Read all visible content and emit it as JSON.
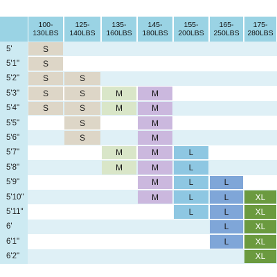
{
  "weights": [
    "100-\n130LBS",
    "125-\n140LBS",
    "135-\n160LBS",
    "145-\n180LBS",
    "155-\n200LBS",
    "165-\n250LBS",
    "175-\n280LBS"
  ],
  "heights": [
    "5'",
    "5'1\"",
    "5'2\"",
    "5'3\"",
    "5'4\"",
    "5'5\"",
    "5'6\"",
    "5'7\"",
    "5'8\"",
    "5'9\"",
    "5'10\"",
    "5'11\"",
    "6'",
    "6'1\"",
    "6'2\""
  ],
  "grid": [
    [
      "S",
      "",
      "",
      "",
      "",
      "",
      ""
    ],
    [
      "S",
      "",
      "",
      "",
      "",
      "",
      ""
    ],
    [
      "S",
      "S",
      "",
      "",
      "",
      "",
      ""
    ],
    [
      "S",
      "S",
      "M",
      "M",
      "",
      "",
      ""
    ],
    [
      "S",
      "S",
      "M",
      "M",
      "",
      "",
      ""
    ],
    [
      "",
      "S",
      "",
      "M",
      "",
      "",
      ""
    ],
    [
      "",
      "S",
      "",
      "M",
      "",
      "",
      ""
    ],
    [
      "",
      "",
      "M",
      "M",
      "L",
      "",
      ""
    ],
    [
      "",
      "",
      "M",
      "M",
      "L",
      "",
      ""
    ],
    [
      "",
      "",
      "",
      "M",
      "L",
      "L",
      ""
    ],
    [
      "",
      "",
      "",
      "M",
      "L",
      "L",
      "XL"
    ],
    [
      "",
      "",
      "",
      "",
      "L",
      "L",
      "XL"
    ],
    [
      "",
      "",
      "",
      "",
      "",
      "L",
      "XL"
    ],
    [
      "",
      "",
      "",
      "",
      "",
      "L",
      "XL"
    ],
    [
      "",
      "",
      "",
      "",
      "",
      "",
      "XL"
    ]
  ],
  "colors": {
    "header": "#9ad3e4",
    "row_blue": "#dff0f6",
    "row_white": "#ffffff",
    "S": "#ddd6c7",
    "M": "#d9e6c8",
    "M_purple": "#cbb8de",
    "L": "#8ec7e2",
    "L_dark": "#7fa6d8",
    "XL": "#6b9a3f"
  }
}
